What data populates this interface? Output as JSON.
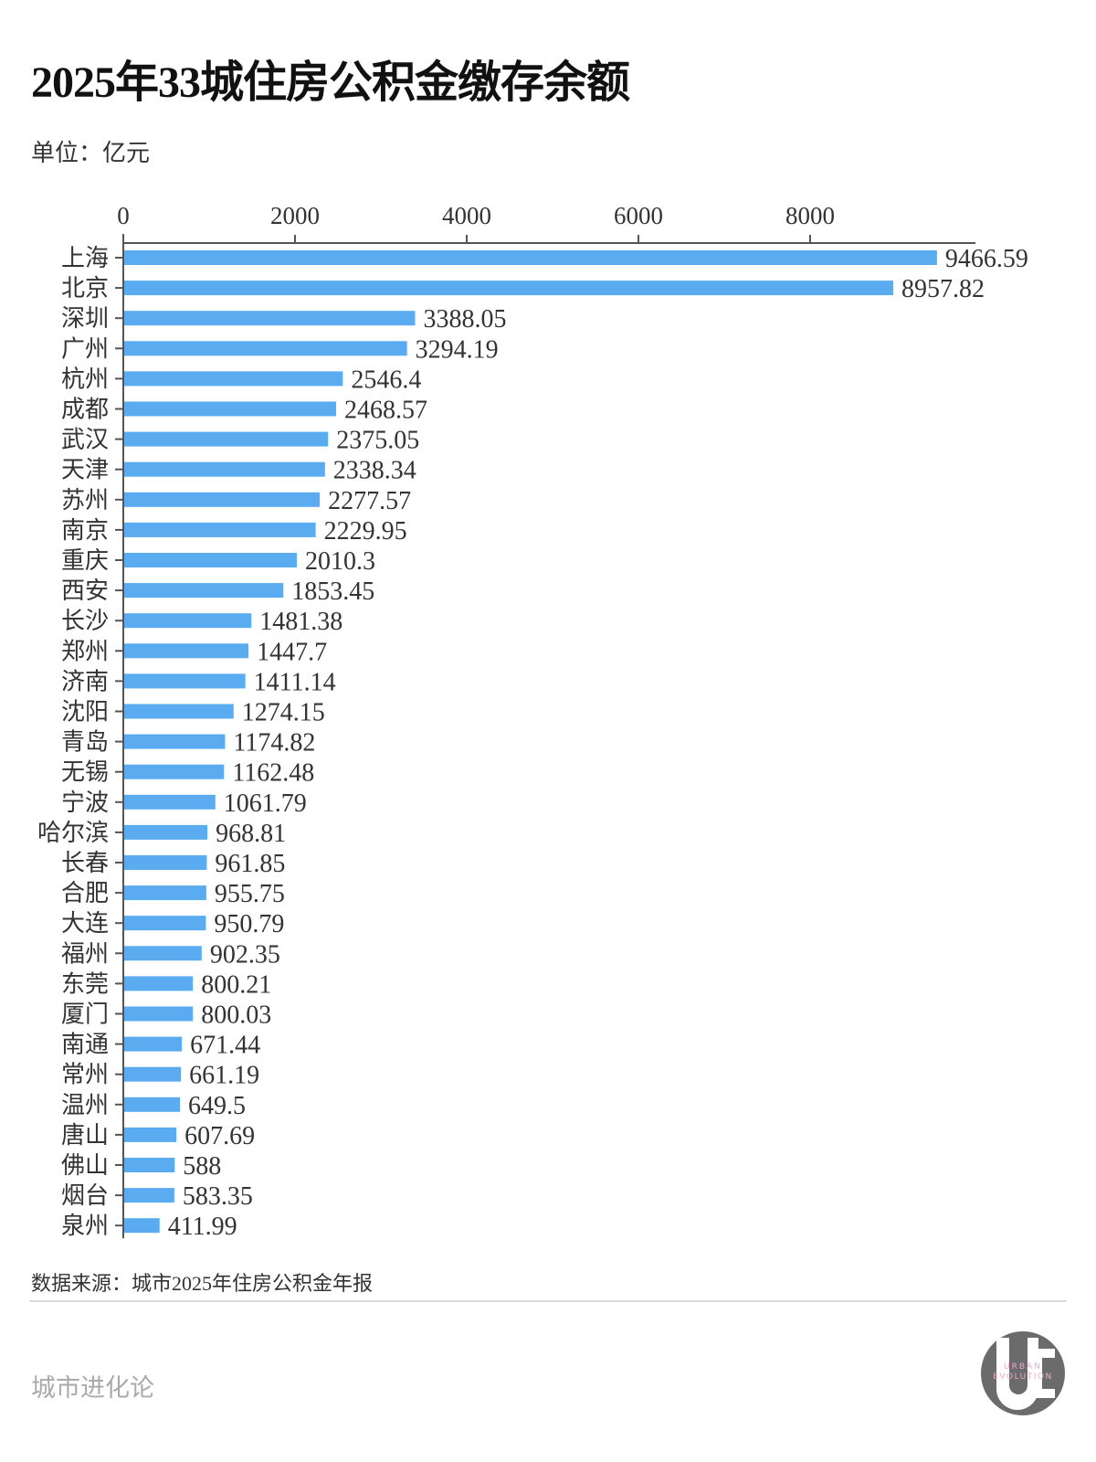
{
  "title": "2025年33城住房公积金缴存余额",
  "unit": "单位：亿元",
  "source": "数据来源：城市2025年住房公积金年报",
  "brand": "城市进化论",
  "logo_text": "URBAN EVOLUTION",
  "chart_data": {
    "type": "bar",
    "orientation": "horizontal",
    "title": "2025年33城住房公积金缴存余额",
    "xlabel": "",
    "ylabel": "",
    "xlim": [
      0,
      10000
    ],
    "x_ticks": [
      0,
      2000,
      4000,
      6000,
      8000
    ],
    "x_axis_position": "top",
    "grid": false,
    "bar_color": "#5aabf0",
    "categories": [
      "上海",
      "北京",
      "深圳",
      "广州",
      "杭州",
      "成都",
      "武汉",
      "天津",
      "苏州",
      "南京",
      "重庆",
      "西安",
      "长沙",
      "郑州",
      "济南",
      "沈阳",
      "青岛",
      "无锡",
      "宁波",
      "哈尔滨",
      "长春",
      "合肥",
      "大连",
      "福州",
      "东莞",
      "厦门",
      "南通",
      "常州",
      "温州",
      "唐山",
      "佛山",
      "烟台",
      "泉州"
    ],
    "values": [
      9466.59,
      8957.82,
      3388.05,
      3294.19,
      2546.4,
      2468.57,
      2375.05,
      2338.34,
      2277.57,
      2229.95,
      2010.3,
      1853.45,
      1481.38,
      1447.7,
      1411.14,
      1274.15,
      1174.82,
      1162.48,
      1061.79,
      968.81,
      961.85,
      955.75,
      950.79,
      902.35,
      800.21,
      800.03,
      671.44,
      661.19,
      649.5,
      607.69,
      588,
      583.35,
      411.99
    ]
  }
}
